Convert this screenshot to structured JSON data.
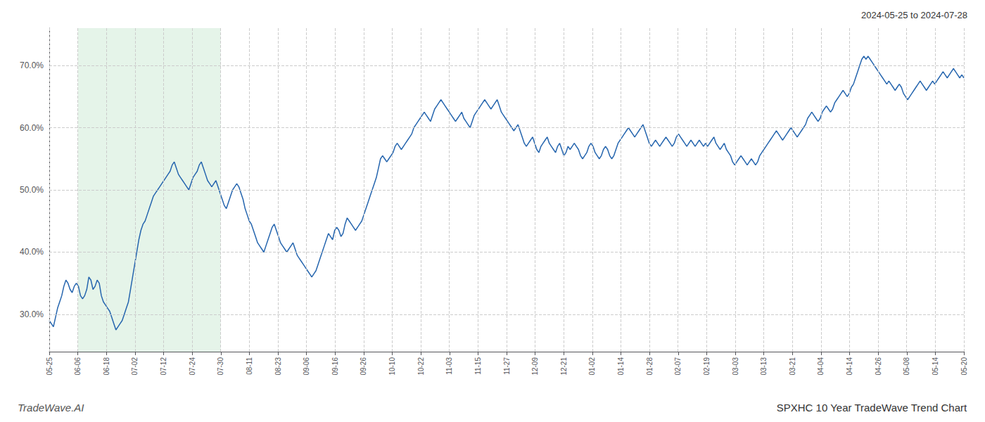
{
  "chart_data": {
    "type": "line",
    "title": "SPXHC 10 Year TradeWave Trend Chart",
    "subtitle": "2024-05-25 to 2024-07-28",
    "annotations": [
      "TradeWave.AI"
    ],
    "color": "#2565ae",
    "grid": true,
    "shaded_region": {
      "x": [
        13.71875,
        82.3125
      ],
      "color": "#d4edda"
    },
    "xlim": [
      0,
      439
    ],
    "xticks": [
      {
        "value": 0,
        "label": "05-25"
      },
      {
        "value": 13.71875,
        "label": "06-06"
      },
      {
        "value": 27.4375,
        "label": "06-18"
      },
      {
        "value": 41.15625,
        "label": "07-02"
      },
      {
        "value": 54.875,
        "label": "07-12"
      },
      {
        "value": 68.59375,
        "label": "07-24"
      },
      {
        "value": 82.3125,
        "label": "07-30"
      },
      {
        "value": 96.03125,
        "label": "08-11"
      },
      {
        "value": 109.75,
        "label": "08-23"
      },
      {
        "value": 123.46875,
        "label": "09-06"
      },
      {
        "value": 137.1875,
        "label": "09-16"
      },
      {
        "value": 150.90625,
        "label": "09-26"
      },
      {
        "value": 164.625,
        "label": "10-10"
      },
      {
        "value": 178.34375,
        "label": "10-22"
      },
      {
        "value": 192.0625,
        "label": "11-03"
      },
      {
        "value": 205.78125,
        "label": "11-15"
      },
      {
        "value": 219.5,
        "label": "11-27"
      },
      {
        "value": 233.21875,
        "label": "12-09"
      },
      {
        "value": 246.9375,
        "label": "12-21"
      },
      {
        "value": 260.65625,
        "label": "01-02"
      },
      {
        "value": 274.375,
        "label": "01-14"
      },
      {
        "value": 288.09375,
        "label": "01-28"
      },
      {
        "value": 301.8125,
        "label": "02-07"
      },
      {
        "value": 315.53125,
        "label": "02-19"
      },
      {
        "value": 329.25,
        "label": "03-03"
      },
      {
        "value": 342.96875,
        "label": "03-13"
      },
      {
        "value": 356.6875,
        "label": "03-21"
      },
      {
        "value": 370.40625,
        "label": "04-04"
      },
      {
        "value": 384.125,
        "label": "04-14"
      },
      {
        "value": 397.84375,
        "label": "04-26"
      },
      {
        "value": 411.5625,
        "label": "05-08"
      },
      {
        "value": 425.28125,
        "label": "05-14"
      },
      {
        "value": 439,
        "label": "05-20"
      }
    ],
    "ylim": [
      24.0,
      76.0
    ],
    "yticks": [
      {
        "value": 30.0,
        "label": "30.0%"
      },
      {
        "value": 40.0,
        "label": "40.0%"
      },
      {
        "value": 50.0,
        "label": "50.0%"
      },
      {
        "value": 60.0,
        "label": "60.0%"
      },
      {
        "value": 70.0,
        "label": "70.0%"
      }
    ],
    "x": [
      0,
      1,
      2,
      3,
      4,
      5,
      6,
      7,
      8,
      9,
      10,
      11,
      12,
      13,
      14,
      15,
      16,
      17,
      18,
      19,
      20,
      21,
      22,
      23,
      24,
      25,
      26,
      27,
      28,
      29,
      30,
      31,
      32,
      33,
      34,
      35,
      36,
      37,
      38,
      39,
      40,
      41,
      42,
      43,
      44,
      45,
      46,
      47,
      48,
      49,
      50,
      51,
      52,
      53,
      54,
      55,
      56,
      57,
      58,
      59,
      60,
      61,
      62,
      63,
      64,
      65,
      66,
      67,
      68,
      69,
      70,
      71,
      72,
      73,
      74,
      75,
      76,
      77,
      78,
      79,
      80,
      81,
      82,
      83,
      84,
      85,
      86,
      87,
      88,
      89,
      90,
      91,
      92,
      93,
      94,
      95,
      96,
      97,
      98,
      99,
      100,
      101,
      102,
      103,
      104,
      105,
      106,
      107,
      108,
      109,
      110,
      111,
      112,
      113,
      114,
      115,
      116,
      117,
      118,
      119,
      120,
      121,
      122,
      123,
      124,
      125,
      126,
      127,
      128,
      129,
      130,
      131,
      132,
      133,
      134,
      135,
      136,
      137,
      138,
      139,
      140,
      141,
      142,
      143,
      144,
      145,
      146,
      147,
      148,
      149,
      150,
      151,
      152,
      153,
      154,
      155,
      156,
      157,
      158,
      159,
      160,
      161,
      162,
      163,
      164,
      165,
      166,
      167,
      168,
      169,
      170,
      171,
      172,
      173,
      174,
      175,
      176,
      177,
      178,
      179,
      180,
      181,
      182,
      183,
      184,
      185,
      186,
      187,
      188,
      189,
      190,
      191,
      192,
      193,
      194,
      195,
      196,
      197,
      198,
      199,
      200,
      201,
      202,
      203,
      204,
      205,
      206,
      207,
      208,
      209,
      210,
      211,
      212,
      213,
      214,
      215,
      216,
      217,
      218,
      219,
      220,
      221,
      222,
      223,
      224,
      225,
      226,
      227,
      228,
      229,
      230,
      231,
      232,
      233,
      234,
      235,
      236,
      237,
      238,
      239,
      240,
      241,
      242,
      243,
      244,
      245,
      246,
      247,
      248,
      249,
      250,
      251,
      252,
      253,
      254,
      255,
      256,
      257,
      258,
      259,
      260,
      261,
      262,
      263,
      264,
      265,
      266,
      267,
      268,
      269,
      270,
      271,
      272,
      273,
      274,
      275,
      276,
      277,
      278,
      279,
      280,
      281,
      282,
      283,
      284,
      285,
      286,
      287,
      288,
      289,
      290,
      291,
      292,
      293,
      294,
      295,
      296,
      297,
      298,
      299,
      300,
      301,
      302,
      303,
      304,
      305,
      306,
      307,
      308,
      309,
      310,
      311,
      312,
      313,
      314,
      315,
      316,
      317,
      318,
      319,
      320,
      321,
      322,
      323,
      324,
      325,
      326,
      327,
      328,
      329,
      330,
      331,
      332,
      333,
      334,
      335,
      336,
      337,
      338,
      339,
      340,
      341,
      342,
      343,
      344,
      345,
      346,
      347,
      348,
      349,
      350,
      351,
      352,
      353,
      354,
      355,
      356,
      357,
      358,
      359,
      360,
      361,
      362,
      363,
      364,
      365,
      366,
      367,
      368,
      369,
      370,
      371,
      372,
      373,
      374,
      375,
      376,
      377,
      378,
      379,
      380,
      381,
      382,
      383,
      384,
      385,
      386,
      387,
      388,
      389,
      390,
      391,
      392,
      393,
      394,
      395,
      396,
      397,
      398,
      399,
      400,
      401,
      402,
      403,
      404,
      405,
      406,
      407,
      408,
      409,
      410,
      411,
      412,
      413,
      414,
      415,
      416,
      417,
      418,
      419,
      420,
      421,
      422,
      423,
      424,
      425,
      426,
      427,
      428,
      429,
      430,
      431,
      432,
      433,
      434,
      435,
      436,
      437,
      438,
      439
    ],
    "values": [
      29.0,
      28.5,
      28.0,
      29.5,
      31.0,
      32.0,
      33.0,
      34.5,
      35.5,
      35.0,
      34.0,
      33.5,
      34.5,
      35.0,
      34.5,
      33.0,
      32.5,
      33.0,
      34.0,
      36.0,
      35.5,
      34.0,
      34.5,
      35.5,
      35.0,
      33.0,
      32.0,
      31.5,
      31.0,
      30.5,
      29.5,
      28.5,
      27.5,
      28.0,
      28.5,
      29.0,
      30.0,
      31.0,
      32.0,
      34.0,
      36.0,
      38.0,
      40.0,
      42.0,
      43.5,
      44.5,
      45.0,
      46.0,
      47.0,
      48.0,
      49.0,
      49.5,
      50.0,
      50.5,
      51.0,
      51.5,
      52.0,
      52.5,
      53.0,
      54.0,
      54.5,
      53.5,
      52.5,
      52.0,
      51.5,
      51.0,
      50.5,
      50.0,
      51.0,
      52.0,
      52.5,
      53.0,
      54.0,
      54.5,
      53.5,
      52.5,
      51.5,
      51.0,
      50.5,
      51.0,
      51.5,
      50.5,
      49.5,
      48.5,
      47.5,
      47.0,
      48.0,
      49.0,
      50.0,
      50.5,
      51.0,
      50.5,
      49.5,
      48.5,
      47.0,
      46.0,
      45.0,
      44.5,
      43.5,
      42.5,
      41.5,
      41.0,
      40.5,
      40.0,
      41.0,
      42.0,
      43.0,
      44.0,
      44.5,
      43.5,
      42.5,
      41.5,
      41.0,
      40.5,
      40.0,
      40.5,
      41.0,
      41.5,
      40.5,
      39.5,
      39.0,
      38.5,
      38.0,
      37.5,
      37.0,
      36.5,
      36.0,
      36.5,
      37.0,
      38.0,
      39.0,
      40.0,
      41.0,
      42.0,
      43.0,
      42.5,
      42.0,
      43.5,
      44.0,
      43.5,
      42.5,
      43.0,
      44.5,
      45.5,
      45.0,
      44.5,
      44.0,
      43.5,
      44.0,
      44.5,
      45.0,
      46.0,
      47.0,
      48.0,
      49.0,
      50.0,
      51.0,
      52.0,
      53.5,
      55.0,
      55.5,
      55.0,
      54.5,
      55.0,
      55.5,
      56.0,
      57.0,
      57.5,
      57.0,
      56.5,
      57.0,
      57.5,
      58.0,
      58.5,
      59.0,
      60.0,
      60.5,
      61.0,
      61.5,
      62.0,
      62.5,
      62.0,
      61.5,
      61.0,
      62.0,
      63.0,
      63.5,
      64.0,
      64.5,
      64.0,
      63.5,
      63.0,
      62.5,
      62.0,
      61.5,
      61.0,
      61.5,
      62.0,
      62.5,
      61.5,
      61.0,
      60.5,
      60.0,
      61.0,
      62.0,
      62.5,
      63.0,
      63.5,
      64.0,
      64.5,
      64.0,
      63.5,
      63.0,
      63.5,
      64.0,
      64.5,
      63.5,
      62.5,
      62.0,
      61.5,
      61.0,
      60.5,
      60.0,
      59.5,
      60.0,
      60.5,
      59.5,
      58.5,
      57.5,
      57.0,
      57.5,
      58.0,
      58.5,
      57.5,
      56.5,
      56.0,
      57.0,
      57.5,
      58.0,
      58.5,
      57.5,
      57.0,
      56.5,
      56.0,
      57.0,
      57.5,
      56.5,
      55.5,
      56.0,
      57.0,
      56.5,
      57.0,
      57.5,
      57.0,
      56.5,
      55.5,
      55.0,
      55.5,
      56.0,
      57.0,
      57.5,
      57.0,
      56.0,
      55.5,
      55.0,
      55.5,
      56.5,
      57.0,
      56.5,
      55.5,
      55.0,
      55.5,
      56.5,
      57.5,
      58.0,
      58.5,
      59.0,
      59.5,
      60.0,
      59.5,
      59.0,
      58.5,
      59.0,
      59.5,
      60.0,
      60.5,
      59.5,
      58.5,
      57.5,
      57.0,
      57.5,
      58.0,
      57.5,
      57.0,
      57.5,
      58.0,
      58.5,
      58.0,
      57.5,
      57.0,
      57.5,
      58.5,
      59.0,
      58.5,
      58.0,
      57.5,
      57.0,
      57.5,
      58.0,
      57.5,
      57.0,
      57.5,
      58.0,
      57.5,
      57.0,
      57.5,
      57.0,
      57.5,
      58.0,
      58.5,
      57.5,
      57.0,
      56.5,
      57.0,
      57.5,
      56.5,
      56.0,
      55.5,
      54.5,
      54.0,
      54.5,
      55.0,
      55.5,
      55.0,
      54.5,
      54.0,
      54.5,
      55.0,
      54.5,
      54.0,
      54.5,
      55.5,
      56.0,
      56.5,
      57.0,
      57.5,
      58.0,
      58.5,
      59.0,
      59.5,
      59.0,
      58.5,
      58.0,
      58.5,
      59.0,
      59.5,
      60.0,
      59.5,
      59.0,
      58.5,
      59.0,
      59.5,
      60.0,
      60.5,
      61.5,
      62.0,
      62.5,
      62.0,
      61.5,
      61.0,
      61.5,
      62.5,
      63.0,
      63.5,
      63.0,
      62.5,
      63.0,
      64.0,
      64.5,
      65.0,
      65.5,
      66.0,
      65.5,
      65.0,
      65.5,
      66.5,
      67.0,
      68.0,
      69.0,
      70.0,
      71.0,
      71.5,
      71.0,
      71.5,
      71.0,
      70.5,
      70.0,
      69.5,
      69.0,
      68.5,
      68.0,
      67.5,
      67.0,
      67.5,
      67.0,
      66.5,
      66.0,
      66.5,
      67.0,
      66.5,
      65.5,
      65.0,
      64.5,
      65.0,
      65.5,
      66.0,
      66.5,
      67.0,
      67.5,
      67.0,
      66.5,
      66.0,
      66.5,
      67.0,
      67.5,
      67.0,
      67.5,
      68.0,
      68.5,
      69.0,
      68.5,
      68.0,
      68.5,
      69.0,
      69.5,
      69.0,
      68.5,
      68.0,
      68.5,
      68.0
    ]
  }
}
